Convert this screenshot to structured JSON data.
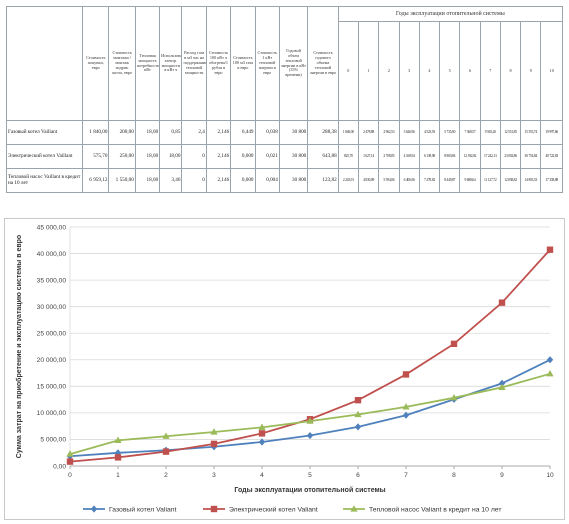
{
  "table": {
    "group_header": "Годы эксплуатации отопительной системы",
    "columns": [
      "Стоимость покупки, евро",
      "Стоимость монтажа / монтаж гидрав. котла, евро",
      "Тепловая мощность потребности кВт",
      "Использование электр. мощности в кВт ч",
      "Расход газа в м3 час на поддержание тепловой мощности",
      "Стоимость 100 кВт ч обогрева/1 рубля в евро",
      "Стоимость 100 м3 газа в евро",
      "Стоимость 1 кВт тепловой энергии в евро",
      "Годовой объем тепловой энергии в кВт (35% времени)",
      "Стоимость годового объема тепловой энергии в евро"
    ],
    "years": [
      "0",
      "1",
      "2",
      "3",
      "4",
      "5",
      "6",
      "7",
      "8",
      "9",
      "10"
    ],
    "rows": [
      {
        "label": "Газовый котел Vaillant",
        "values": [
          "1 840,00",
          "200,00",
          "18,00",
          "0,85",
          "2,4",
          "2,146",
          "6,449",
          "0,038",
          "30 800",
          "288,38"
        ],
        "years": [
          "1 840,00",
          "2 478,88",
          "2 962,53",
          "3 626,96",
          "4 523,93",
          "5 735,00",
          "7 368,57",
          "9 565,20",
          "12 551,85",
          "15 553,74",
          "19 997,66"
        ]
      },
      {
        "label": "Электрический котел Vaillant",
        "values": [
          "575,70",
          "250,00",
          "18,00",
          "18,00",
          "0",
          "2,146",
          "0,000",
          "0,021",
          "30 800",
          "643,88"
        ],
        "years": [
          "825,70",
          "1 627,14",
          "2 708,85",
          "4 168,94",
          "6 139,98",
          "8 800,84",
          "12 392,82",
          "17 242,13",
          "23 002,86",
          "30 754,84",
          "40 722,83"
        ]
      },
      {
        "label": "Тепловой насос Vaillant в кредит на 10 лет",
        "values": [
          "6 959,12",
          "1 550,00",
          "18,00",
          "3,46",
          "0",
          "2,146",
          "0,000",
          "0,004",
          "30 800",
          "123,82"
        ],
        "years": [
          "2 243,91",
          "4 830,09",
          "5 594,06",
          "6 406,96",
          "7 278,82",
          "8 449,87",
          "9 688,64",
          "11 127,72",
          "12 838,82",
          "14 803,53",
          "17 358,88"
        ]
      }
    ]
  },
  "chart_data": {
    "type": "line",
    "xlabel": "Годы эксплуатации отопительной системы",
    "ylabel": "Сумма затрат на приобретение и эксплуатацию системы в евро",
    "x": [
      0,
      1,
      2,
      3,
      4,
      5,
      6,
      7,
      8,
      9,
      10
    ],
    "xlim": [
      0,
      10
    ],
    "ylim": [
      0,
      45000
    ],
    "ytick_step": 5000,
    "ytick_labels": [
      "0,00",
      "5 000,00",
      "10 000,00",
      "15 000,00",
      "20 000,00",
      "25 000,00",
      "30 000,00",
      "35 000,00",
      "40 000,00",
      "45 000,00"
    ],
    "xtick_labels": [
      "0",
      "1",
      "2",
      "3",
      "4",
      "5",
      "6",
      "7",
      "8",
      "9",
      "10"
    ],
    "grid": true,
    "legend_position": "bottom",
    "series": [
      {
        "name": "Газовый котел Valiant",
        "color": "#4f81bd",
        "marker": "diamond",
        "values": [
          1840,
          2479,
          2963,
          3627,
          4524,
          5735,
          7369,
          9565,
          12552,
          15554,
          19998
        ]
      },
      {
        "name": "Электрический котел Valiant",
        "color": "#c0504d",
        "marker": "square",
        "values": [
          826,
          1627,
          2709,
          4169,
          6140,
          8801,
          12393,
          17242,
          23003,
          30755,
          40723
        ]
      },
      {
        "name": "Тепловой насос Valiant в кредит на 10 лет",
        "color": "#9bbb59",
        "marker": "triangle",
        "values": [
          2244,
          4830,
          5594,
          6407,
          7279,
          8450,
          9689,
          11128,
          12839,
          14804,
          17359
        ]
      }
    ]
  }
}
